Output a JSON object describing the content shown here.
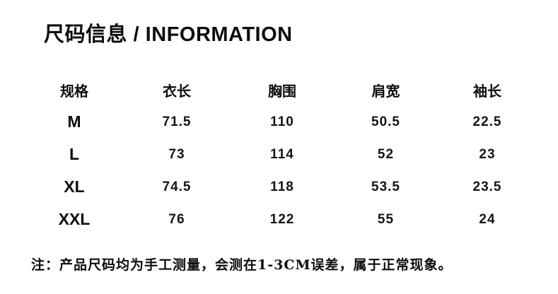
{
  "page": {
    "background_color": "#ffffff",
    "text_color": "#111111"
  },
  "header": {
    "title": "尺码信息 / INFORMATION"
  },
  "size_table": {
    "columns": [
      "规格",
      "衣长",
      "胸围",
      "肩宽",
      "袖长"
    ],
    "rows": [
      {
        "size": "M",
        "values": [
          "71.5",
          "110",
          "50.5",
          "22.5"
        ]
      },
      {
        "size": "L",
        "values": [
          "73",
          "114",
          "52",
          "23"
        ]
      },
      {
        "size": "XL",
        "values": [
          "74.5",
          "118",
          "53.5",
          "23.5"
        ]
      },
      {
        "size": "XXL",
        "values": [
          "76",
          "122",
          "55",
          "24"
        ]
      }
    ]
  },
  "footnote": {
    "text": "注：产品尺码均为手工测量，会测在1-3CM误差，属于正常现象。"
  }
}
